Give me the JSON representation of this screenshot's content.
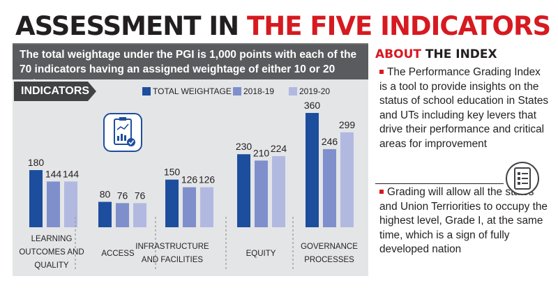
{
  "headline": {
    "part_a": "ASSESSMENT IN ",
    "part_b": "THE FIVE INDICATORS"
  },
  "intro": "The total weightage under the PGI is 1,000 points with each of the 70 indicators having an assigned weightage of either 10 or 20 points",
  "indicators_label": "INDICATORS",
  "legend": [
    {
      "label": "TOTAL WEIGHTAGE",
      "color": "#1d4e9e"
    },
    {
      "label": "2018-19",
      "color": "#7f8fcc"
    },
    {
      "label": "2019-20",
      "color": "#b2b9e1"
    }
  ],
  "chart_data": {
    "type": "bar",
    "categories": [
      [
        "LEARNING",
        "OUTCOMES AND",
        "QUALITY"
      ],
      [
        "ACCESS"
      ],
      [
        "INFRASTRUCTURE",
        "AND FACILITIES"
      ],
      [
        "EQUITY"
      ],
      [
        "GOVERNANCE",
        "PROCESSES"
      ]
    ],
    "series": [
      {
        "name": "TOTAL WEIGHTAGE",
        "color": "#1d4e9e",
        "values": [
          180,
          80,
          150,
          230,
          360
        ]
      },
      {
        "name": "2018-19",
        "color": "#7f8fcc",
        "values": [
          144,
          76,
          126,
          210,
          246
        ]
      },
      {
        "name": "2019-20",
        "color": "#b2b9e1",
        "values": [
          144,
          76,
          126,
          224,
          299
        ]
      }
    ],
    "data_labels": true,
    "grid": false,
    "legend_position": "top",
    "ylim": [
      0,
      360
    ]
  },
  "sidebar": {
    "title_a": "ABOUT ",
    "title_b": "THE INDEX",
    "points": [
      "The Performance Grading Index is a tool to provide insights on the status of school education in States and UTs including key levers that drive their performance and critical areas for improvement",
      "Grading will allow all the states and Union Terriorities to occupy the highest level, Grade I, at the same time, which is a sign of fully developed nation"
    ]
  },
  "icons": {
    "report": "report-chart-icon",
    "checklist": "checklist-icon"
  }
}
